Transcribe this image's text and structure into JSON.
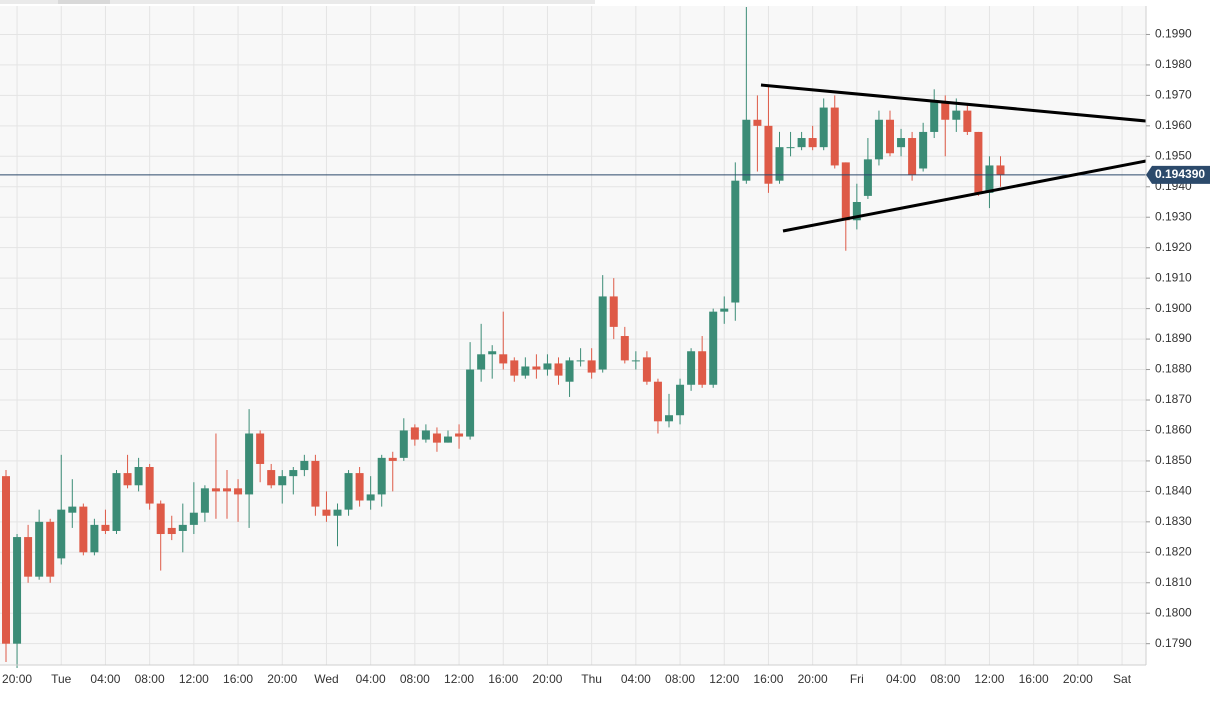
{
  "chart_data": {
    "type": "candlestick",
    "categories": [
      null,
      "20:00",
      null,
      null,
      null,
      "Tue",
      null,
      null,
      null,
      "04:00",
      null,
      null,
      null,
      "08:00",
      null,
      null,
      null,
      "12:00",
      null,
      null,
      null,
      "16:00",
      null,
      null,
      null,
      "20:00",
      null,
      null,
      null,
      "Wed",
      null,
      null,
      null,
      "04:00",
      null,
      null,
      null,
      "08:00",
      null,
      null,
      null,
      "12:00",
      null,
      null,
      null,
      "16:00",
      null,
      null,
      null,
      "20:00",
      null,
      null,
      null,
      "Thu",
      null,
      null,
      null,
      "04:00",
      null,
      null,
      null,
      "08:00",
      null,
      null,
      null,
      "12:00",
      null,
      null,
      null,
      "16:00",
      null,
      null,
      null,
      "20:00",
      null,
      null,
      null,
      "Fri",
      null,
      null,
      null,
      "04:00",
      null,
      null,
      null,
      "08:00",
      null,
      null,
      null,
      "12:00",
      null,
      null,
      null,
      "16:00",
      null,
      null,
      null,
      "20:00",
      null,
      null,
      null,
      "Sat"
    ],
    "open": [
      0.1845,
      0.179,
      0.1825,
      0.1812,
      0.183,
      0.1818,
      0.1833,
      0.1835,
      0.182,
      0.1829,
      0.1827,
      0.1846,
      0.1842,
      0.1848,
      0.1836,
      0.1828,
      0.1827,
      0.1829,
      0.1833,
      0.1841,
      0.1841,
      0.1841,
      0.1839,
      0.1859,
      0.1847,
      0.1842,
      0.1845,
      0.1847,
      0.185,
      0.1834,
      0.1832,
      0.1834,
      0.1846,
      0.1837,
      0.1839,
      0.1851,
      0.1851,
      0.1861,
      0.1857,
      0.1859,
      0.1856,
      0.1859,
      0.1858,
      0.188,
      0.1885,
      0.1885,
      0.1883,
      0.1878,
      0.1881,
      0.188,
      0.1882,
      0.1876,
      0.1883,
      0.1883,
      0.188,
      0.1904,
      0.1891,
      0.1883,
      0.1884,
      0.1876,
      0.1863,
      0.1865,
      0.1875,
      0.1886,
      0.1875,
      0.1899,
      0.1902,
      0.1942,
      0.1962,
      0.196,
      0.1942,
      0.1953,
      0.1953,
      0.1956,
      0.1953,
      0.1966,
      0.1948,
      0.1929,
      0.1937,
      0.1949,
      0.1962,
      0.1953,
      0.1956,
      0.1946,
      0.1958,
      0.1968,
      0.1962,
      0.1965,
      0.1958,
      0.1938,
      0.1947,
      null,
      null,
      null,
      null,
      null,
      null,
      null,
      null,
      null,
      null,
      null
    ],
    "high": [
      0.1847,
      0.1826,
      0.1829,
      0.1834,
      0.1831,
      0.1852,
      0.1844,
      0.1836,
      0.1831,
      0.1834,
      0.1847,
      0.1852,
      0.1851,
      0.1849,
      0.1837,
      0.1832,
      0.1836,
      0.1843,
      0.1842,
      0.1859,
      0.1847,
      0.1844,
      0.1867,
      0.186,
      0.1849,
      0.1847,
      0.1848,
      0.1852,
      0.1852,
      0.184,
      0.1836,
      0.1847,
      0.1848,
      0.1845,
      0.1852,
      0.1853,
      0.1864,
      0.1862,
      0.1862,
      0.1861,
      0.186,
      0.1862,
      0.1889,
      0.1895,
      0.1888,
      0.1899,
      0.1884,
      0.1884,
      0.1885,
      0.1885,
      0.1884,
      0.1884,
      0.1887,
      0.1887,
      0.1911,
      0.191,
      0.1894,
      0.1886,
      0.1886,
      0.1877,
      0.1872,
      0.1877,
      0.1887,
      0.1891,
      0.19,
      0.1904,
      0.1948,
      0.1999,
      0.197,
      0.1973,
      0.1958,
      0.1958,
      0.1958,
      0.196,
      0.1969,
      0.197,
      0.1948,
      0.1941,
      0.1956,
      0.1965,
      0.1965,
      0.1959,
      0.1958,
      0.1961,
      0.1972,
      0.197,
      0.1969,
      0.1967,
      0.1958,
      0.195,
      0.195,
      null,
      null,
      null,
      null,
      null,
      null,
      null,
      null,
      null,
      null,
      null
    ],
    "low": [
      0.1784,
      0.1782,
      0.181,
      0.1811,
      0.181,
      0.1816,
      0.1828,
      0.1819,
      0.1819,
      0.1826,
      0.1826,
      0.1841,
      0.184,
      0.1834,
      0.1814,
      0.1824,
      0.182,
      0.1826,
      0.183,
      0.1831,
      0.1831,
      0.183,
      0.1828,
      0.1843,
      0.1841,
      0.1836,
      0.1839,
      0.1845,
      0.1832,
      0.183,
      0.1822,
      0.1832,
      0.1835,
      0.1834,
      0.1835,
      0.184,
      0.185,
      0.1855,
      0.1856,
      0.1853,
      0.1856,
      0.1854,
      0.1857,
      0.1876,
      0.1877,
      0.188,
      0.1876,
      0.1877,
      0.1877,
      0.1878,
      0.1875,
      0.1871,
      0.1881,
      0.1877,
      0.1879,
      0.189,
      0.1882,
      0.188,
      0.1875,
      0.1859,
      0.1861,
      0.1862,
      0.1873,
      0.1874,
      0.1874,
      0.1895,
      0.1896,
      0.1941,
      0.1945,
      0.1938,
      0.1941,
      0.195,
      0.1952,
      0.1952,
      0.1952,
      0.1946,
      0.1919,
      0.1926,
      0.1936,
      0.1947,
      0.195,
      0.195,
      0.1942,
      0.1945,
      0.1956,
      0.195,
      0.1958,
      0.1957,
      0.1937,
      0.1933,
      0.194,
      null,
      null,
      null,
      null,
      null,
      null,
      null,
      null,
      null,
      null,
      null
    ],
    "close": [
      0.179,
      0.1825,
      0.1812,
      0.183,
      0.1812,
      0.1834,
      0.1835,
      0.182,
      0.1829,
      0.1827,
      0.1846,
      0.1842,
      0.1848,
      0.1836,
      0.1826,
      0.1826,
      0.1829,
      0.1833,
      0.1841,
      0.184,
      0.184,
      0.1839,
      0.1859,
      0.1849,
      0.1842,
      0.1845,
      0.1847,
      0.185,
      0.1835,
      0.1832,
      0.1834,
      0.1846,
      0.1837,
      0.1839,
      0.1851,
      0.185,
      0.186,
      0.1857,
      0.186,
      0.1856,
      0.1858,
      0.1858,
      0.188,
      0.1885,
      0.1886,
      0.1882,
      0.1878,
      0.1881,
      0.188,
      0.1882,
      0.1878,
      0.1883,
      0.1883,
      0.1879,
      0.1904,
      0.1894,
      0.1883,
      0.1883,
      0.1876,
      0.1863,
      0.1865,
      0.1875,
      0.1886,
      0.1875,
      0.1899,
      0.19,
      0.1942,
      0.1962,
      0.196,
      0.1941,
      0.1953,
      0.1953,
      0.1956,
      0.1953,
      0.1966,
      0.1947,
      0.1929,
      0.1935,
      0.1949,
      0.1962,
      0.1951,
      0.1956,
      0.1944,
      0.1958,
      0.1968,
      0.1962,
      0.1965,
      0.1958,
      0.1938,
      0.1947,
      0.1944,
      null,
      null,
      null,
      null,
      null,
      null,
      null,
      null,
      null,
      null,
      null
    ],
    "up_color": "#3b8c76",
    "down_color": "#de5a47",
    "ylim": [
      0.1783,
      0.2
    ],
    "yticks": [
      {
        "value": 0.179,
        "label": "0.1790"
      },
      {
        "value": 0.18,
        "label": "0.1800"
      },
      {
        "value": 0.181,
        "label": "0.1810"
      },
      {
        "value": 0.182,
        "label": "0.1820"
      },
      {
        "value": 0.183,
        "label": "0.1830"
      },
      {
        "value": 0.184,
        "label": "0.1840"
      },
      {
        "value": 0.185,
        "label": "0.1850"
      },
      {
        "value": 0.186,
        "label": "0.1860"
      },
      {
        "value": 0.187,
        "label": "0.1870"
      },
      {
        "value": 0.188,
        "label": "0.1880"
      },
      {
        "value": 0.189,
        "label": "0.1890"
      },
      {
        "value": 0.19,
        "label": "0.1900"
      },
      {
        "value": 0.191,
        "label": "0.1910"
      },
      {
        "value": 0.192,
        "label": "0.1920"
      },
      {
        "value": 0.193,
        "label": "0.1930"
      },
      {
        "value": 0.194,
        "label": "0.1940"
      },
      {
        "value": 0.195,
        "label": "0.1950"
      },
      {
        "value": 0.196,
        "label": "0.1960"
      },
      {
        "value": 0.197,
        "label": "0.1970"
      },
      {
        "value": 0.198,
        "label": "0.1980"
      },
      {
        "value": 0.199,
        "label": "0.1990"
      }
    ],
    "last_price": {
      "value": 0.19439,
      "label": "0.194390"
    },
    "grid": true
  }
}
